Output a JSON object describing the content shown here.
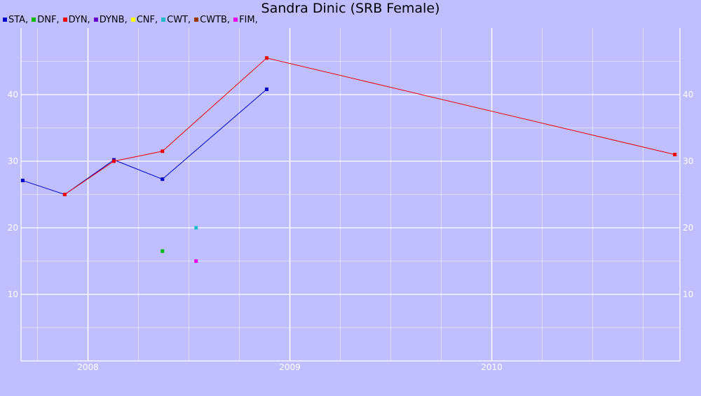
{
  "chart_data": {
    "type": "line",
    "title": "Sandra Dinic (SRB Female)",
    "xlabel": "",
    "ylabel": "",
    "x_ticks": [
      "2008",
      "2009",
      "2010"
    ],
    "y_ticks": [
      10,
      20,
      30,
      40
    ],
    "xlim": [
      "2007-09-01",
      "2010-12-01"
    ],
    "ylim": [
      0,
      50
    ],
    "grid": true,
    "legend_position": "top-left",
    "series": [
      {
        "name": "STA",
        "color": "#0000cc",
        "show_line": true,
        "points": [
          [
            "2007-09-05",
            27.1
          ],
          [
            "2007-11-20",
            25.0
          ],
          [
            "2008-02-17",
            30.2
          ],
          [
            "2008-05-15",
            27.3
          ],
          [
            "2008-11-20",
            40.8
          ]
        ]
      },
      {
        "name": "DNF",
        "color": "#00bb00",
        "show_line": false,
        "points": [
          [
            "2008-05-15",
            16.5
          ]
        ]
      },
      {
        "name": "DYN",
        "color": "#ee0000",
        "show_line": true,
        "points": [
          [
            "2007-11-20",
            25.0
          ],
          [
            "2008-02-17",
            30.0
          ],
          [
            "2008-05-15",
            31.5
          ],
          [
            "2008-11-20",
            45.5
          ],
          [
            "2010-11-28",
            31.0
          ]
        ]
      },
      {
        "name": "DYNB",
        "color": "#6600cc",
        "show_line": false,
        "points": []
      },
      {
        "name": "CNF",
        "color": "#ffff00",
        "show_line": false,
        "points": []
      },
      {
        "name": "CWT",
        "color": "#22bbcc",
        "show_line": false,
        "points": [
          [
            "2008-07-15",
            20.0
          ]
        ]
      },
      {
        "name": "CWTB",
        "color": "#993300",
        "show_line": false,
        "points": []
      },
      {
        "name": "FIM",
        "color": "#ee00ee",
        "show_line": false,
        "points": [
          [
            "2008-07-15",
            15.0
          ]
        ]
      }
    ]
  }
}
